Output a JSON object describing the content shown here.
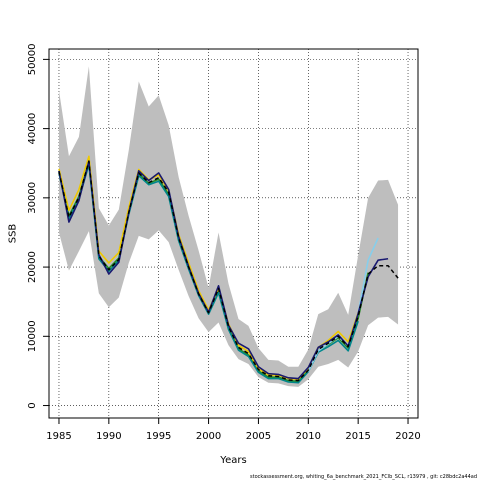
{
  "chart_data": {
    "type": "line",
    "title": "",
    "xlabel": "Years",
    "ylabel": "SSB",
    "xlim": [
      1984,
      2021
    ],
    "ylim": [
      -1800,
      51500
    ],
    "x_ticks": [
      1985,
      1990,
      1995,
      2000,
      2005,
      2010,
      2015,
      2020
    ],
    "y_ticks": [
      0,
      10000,
      20000,
      30000,
      40000,
      50000
    ],
    "grid": true,
    "legend": "none",
    "footer": "stockassessment.org, whiting_6a_benchmark_2021_FClb_SCL, r13979 , git: c28bdc2a44ad",
    "band": {
      "years": [
        1985,
        1986,
        1987,
        1988,
        1989,
        1990,
        1991,
        1992,
        1993,
        1994,
        1995,
        1996,
        1997,
        1998,
        1999,
        2000,
        2001,
        2002,
        2003,
        2004,
        2005,
        2006,
        2007,
        2008,
        2009,
        2010,
        2011,
        2012,
        2013,
        2014,
        2015,
        2016,
        2017,
        2018,
        2019
      ],
      "upper": [
        45500,
        36000,
        38800,
        49000,
        28500,
        26000,
        28300,
        36900,
        46800,
        43200,
        44800,
        40500,
        33000,
        27400,
        22400,
        17000,
        25000,
        17600,
        12500,
        11500,
        8300,
        6600,
        6500,
        5600,
        5600,
        8100,
        13200,
        13900,
        16300,
        13100,
        21700,
        30000,
        32500,
        32600,
        29000
      ],
      "lower": [
        25000,
        19500,
        22300,
        25200,
        16200,
        14200,
        15600,
        20600,
        24500,
        24000,
        25300,
        23600,
        19600,
        15800,
        12600,
        10600,
        12000,
        8700,
        6700,
        6000,
        4100,
        3300,
        3200,
        2800,
        2700,
        3800,
        5600,
        6000,
        6600,
        5500,
        7800,
        11600,
        12700,
        12800,
        11700
      ],
      "color": "#bebebe"
    },
    "series": [
      {
        "color": "#228b22",
        "x": [
          1985,
          1986,
          1987,
          1988,
          1989,
          1990,
          1991,
          1992,
          1993,
          1994,
          1995,
          1996,
          1997,
          1998,
          1999,
          2000,
          2001,
          2002,
          2003,
          2004,
          2005,
          2006,
          2007,
          2008,
          2009,
          2010,
          2011,
          2012,
          2013,
          2014,
          2015,
          2016
        ],
        "y": [
          33800,
          27400,
          30200,
          35200,
          21500,
          19800,
          21300,
          28000,
          33500,
          32100,
          32700,
          30500,
          24100,
          20000,
          16100,
          13400,
          16500,
          11200,
          8200,
          7300,
          5000,
          4100,
          4100,
          3600,
          3500,
          5100,
          7900,
          8800,
          9800,
          8300,
          12600,
          19200
        ]
      },
      {
        "color": "#eec900",
        "x": [
          1985,
          1986,
          1987,
          1988,
          1989,
          1990,
          1991,
          1992,
          1993,
          1994,
          1995,
          1996,
          1997,
          1998,
          1999,
          2000,
          2001,
          2002,
          2003,
          2004,
          2005,
          2006,
          2007,
          2008,
          2009,
          2010,
          2011,
          2012,
          2013,
          2014,
          2015
        ],
        "y": [
          34200,
          28200,
          31200,
          36000,
          22300,
          20600,
          22100,
          28600,
          34100,
          32600,
          33300,
          31000,
          24700,
          20600,
          16600,
          13800,
          16900,
          11800,
          8700,
          7800,
          5300,
          4400,
          4400,
          3900,
          3800,
          5400,
          8400,
          9400,
          10700,
          9200,
          13400
        ]
      },
      {
        "color": "#00868b",
        "x": [
          1985,
          1986,
          1987,
          1988,
          1989,
          1990,
          1991,
          1992,
          1993,
          1994,
          1995,
          1996,
          1997,
          1998,
          1999,
          2000,
          2001,
          2002,
          2003,
          2004,
          2005,
          2006,
          2007,
          2008,
          2009,
          2010,
          2011,
          2012,
          2013,
          2014,
          2015
        ],
        "y": [
          33600,
          27000,
          29800,
          34800,
          21200,
          19400,
          21000,
          27600,
          33200,
          31900,
          32400,
          30200,
          23800,
          19700,
          15900,
          13200,
          16300,
          11000,
          8000,
          7100,
          4800,
          3900,
          3900,
          3400,
          3300,
          4900,
          7700,
          8500,
          9400,
          7900,
          12200
        ]
      },
      {
        "color": "#87ceeb",
        "x": [
          2010,
          2011,
          2012,
          2013,
          2014,
          2015,
          2016,
          2017
        ],
        "y": [
          4900,
          7900,
          8900,
          10000,
          8600,
          13300,
          21000,
          24200
        ]
      },
      {
        "color": "#191970",
        "x": [
          1985,
          1986,
          1987,
          1988,
          1989,
          1990,
          1991,
          1992,
          1993,
          1994,
          1995,
          1996,
          1997,
          1998,
          1999,
          2000,
          2001,
          2002,
          2003,
          2004,
          2005,
          2006,
          2007,
          2008,
          2009,
          2010,
          2011,
          2012,
          2013,
          2014,
          2015,
          2016,
          2017,
          2018
        ],
        "y": [
          33900,
          26500,
          29600,
          35300,
          21800,
          19000,
          20700,
          27900,
          33900,
          32500,
          33600,
          31200,
          24400,
          20100,
          16200,
          13500,
          17300,
          11600,
          9000,
          8200,
          5600,
          4600,
          4500,
          4000,
          3900,
          5500,
          8400,
          9200,
          10200,
          8600,
          13300,
          18600,
          21000,
          21200
        ]
      },
      {
        "color": "#000000",
        "dashed": true,
        "x": [
          1985,
          1986,
          1987,
          1988,
          1989,
          1990,
          1991,
          1992,
          1993,
          1994,
          1995,
          1996,
          1997,
          1998,
          1999,
          2000,
          2001,
          2002,
          2003,
          2004,
          2005,
          2006,
          2007,
          2008,
          2009,
          2010,
          2011,
          2012,
          2013,
          2014,
          2015,
          2016,
          2017,
          2018,
          2019
        ],
        "y": [
          33800,
          27200,
          30100,
          35300,
          21600,
          19600,
          21100,
          27900,
          33600,
          32200,
          32900,
          30800,
          24200,
          20000,
          16100,
          13400,
          16900,
          11400,
          8400,
          7500,
          5200,
          4300,
          4200,
          3700,
          3600,
          5100,
          8100,
          9000,
          10000,
          8500,
          12900,
          19000,
          20200,
          20200,
          18400
        ]
      }
    ]
  }
}
